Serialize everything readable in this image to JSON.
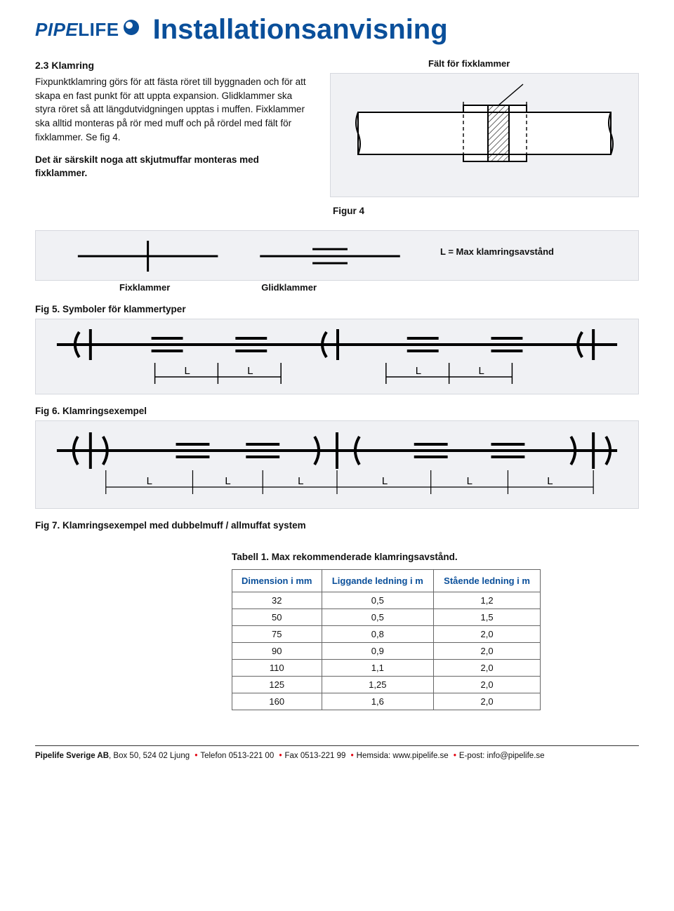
{
  "logo": {
    "part1": "PIPE",
    "part2": "LIFE"
  },
  "title": "Installationsanvisning",
  "section": {
    "heading": "2.3 Klamring",
    "body": "Fixpunktklamring görs för att fästa röret till byggnaden och för att skapa en fast punkt för att uppta expansion. Glidklammer ska styra röret så att längdutvidgningen upptas i muffen. Fixklammer ska alltid monteras på rör med muff och på rördel med fält för fixklammer. Se fig 4.",
    "note": "Det är särskilt noga att skjutmuffar monteras med fixklammer."
  },
  "fig4": {
    "top_label": "Fält för fixklammer",
    "caption": "Figur 4"
  },
  "fig5": {
    "inline_label": "L = Max klamringsavstånd",
    "left_label": "Fixklammer",
    "right_label": "Glidklammer",
    "caption": "Fig 5. Symboler för klammertyper"
  },
  "fig6": {
    "caption": "Fig 6. Klamringsexempel"
  },
  "fig7": {
    "caption": "Fig 7. Klamringsexempel med dubbelmuff / allmuffat system"
  },
  "table": {
    "title": "Tabell 1. Max rekommenderade klamringsavstånd.",
    "columns": [
      "Dimension i mm",
      "Liggande ledning i m",
      "Stående ledning i m"
    ],
    "rows": [
      [
        "32",
        "0,5",
        "1,2"
      ],
      [
        "50",
        "0,5",
        "1,5"
      ],
      [
        "75",
        "0,8",
        "2,0"
      ],
      [
        "90",
        "0,9",
        "2,0"
      ],
      [
        "110",
        "1,1",
        "2,0"
      ],
      [
        "125",
        "1,25",
        "2,0"
      ],
      [
        "160",
        "1,6",
        "2,0"
      ]
    ]
  },
  "footer": {
    "company": "Pipelife Sverige AB",
    "parts": [
      ", Box 50, 524 02 Ljung",
      "Telefon 0513-221 00",
      "Fax 0513-221 99",
      "Hemsida: www.pipelife.se",
      "E-post: info@pipelife.se"
    ]
  },
  "style": {
    "brand_color": "#0a4f9a",
    "accent_red": "#e30613",
    "fig_bg": "#f0f1f4",
    "fig_border": "#d6d8de",
    "table_border": "#666666",
    "stroke": "#000000",
    "stroke_width_thick": 4,
    "stroke_width_thin": 2
  }
}
